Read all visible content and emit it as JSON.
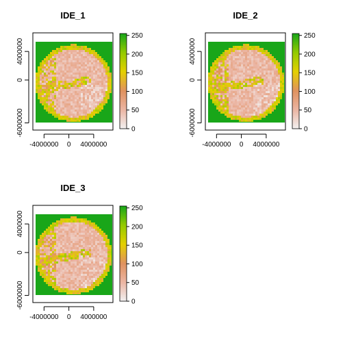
{
  "chart_data": [
    {
      "type": "heatmap",
      "title": "IDE_1",
      "x_ticks": [
        -4000000,
        0,
        4000000
      ],
      "x_tick_labels": [
        "-4000000",
        "0",
        "4000000"
      ],
      "y_ticks": [
        -6000000,
        0,
        4000000
      ],
      "y_tick_labels": [
        "-6000000",
        "0",
        "4000000"
      ],
      "xlim": [
        -5800000,
        7100000
      ],
      "ylim": [
        -7000000,
        6600000
      ],
      "colorbar": {
        "ticks": [
          0,
          50,
          100,
          150,
          200,
          250
        ],
        "labels": [
          "0",
          "50",
          "100",
          "150",
          "200",
          "250"
        ],
        "range": [
          0,
          255
        ]
      },
      "colormap": [
        "#f2f2f2",
        "#ebb5a3",
        "#e0925f",
        "#e4d000",
        "#95cb00",
        "#19a619"
      ]
    },
    {
      "type": "heatmap",
      "title": "IDE_2",
      "x_ticks": [
        -4000000,
        0,
        4000000
      ],
      "x_tick_labels": [
        "-4000000",
        "0",
        "4000000"
      ],
      "y_ticks": [
        -6000000,
        0,
        4000000
      ],
      "y_tick_labels": [
        "-6000000",
        "0",
        "4000000"
      ],
      "xlim": [
        -5800000,
        7100000
      ],
      "ylim": [
        -7000000,
        6600000
      ],
      "colorbar": {
        "ticks": [
          0,
          50,
          100,
          150,
          200,
          250
        ],
        "labels": [
          "0",
          "50",
          "100",
          "150",
          "200",
          "250"
        ],
        "range": [
          0,
          255
        ]
      },
      "colormap": [
        "#f2f2f2",
        "#ebb5a3",
        "#e0925f",
        "#e4d000",
        "#95cb00",
        "#19a619"
      ]
    },
    {
      "type": "heatmap",
      "title": "IDE_3",
      "x_ticks": [
        -4000000,
        0,
        4000000
      ],
      "x_tick_labels": [
        "-4000000",
        "0",
        "4000000"
      ],
      "y_ticks": [
        -6000000,
        0,
        4000000
      ],
      "y_tick_labels": [
        "-6000000",
        "0",
        "4000000"
      ],
      "xlim": [
        -5800000,
        7100000
      ],
      "ylim": [
        -7000000,
        6600000
      ],
      "colorbar": {
        "ticks": [
          0,
          50,
          100,
          150,
          200,
          250
        ],
        "labels": [
          "0",
          "50",
          "100",
          "150",
          "200",
          "250"
        ],
        "range": [
          0,
          255
        ]
      },
      "colormap": [
        "#f2f2f2",
        "#ebb5a3",
        "#e0925f",
        "#e4d000",
        "#95cb00",
        "#19a619"
      ]
    }
  ]
}
